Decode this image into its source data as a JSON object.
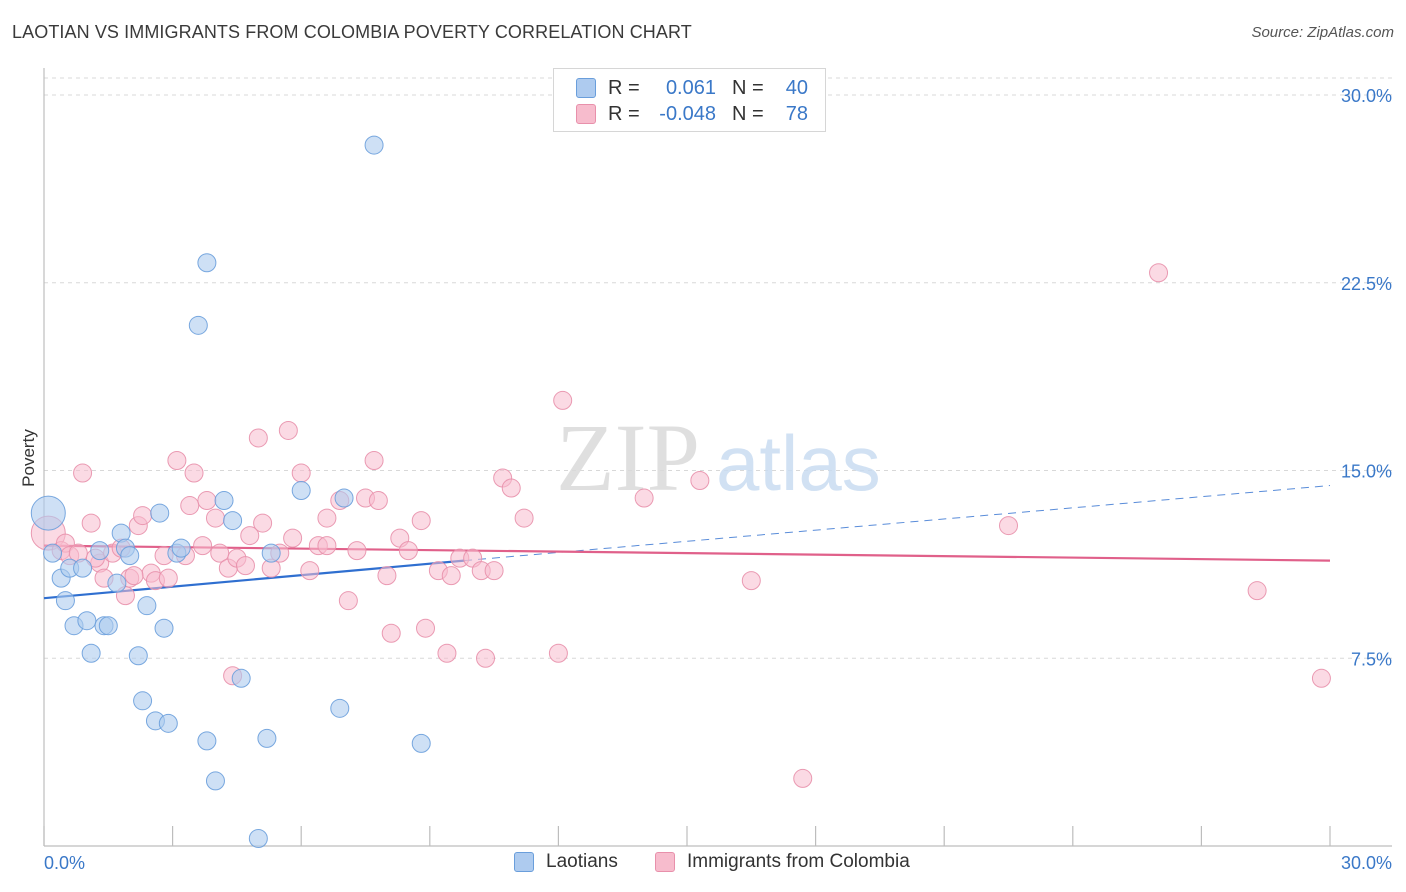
{
  "title": "LAOTIAN VS IMMIGRANTS FROM COLOMBIA POVERTY CORRELATION CHART",
  "source": "Source: ZipAtlas.com",
  "watermark": {
    "zip": "ZIP",
    "atlas": "atlas"
  },
  "legend": {
    "rows": [
      {
        "r_label": "R =",
        "r_value": "0.061",
        "n_label": "N =",
        "n_value": "40"
      },
      {
        "r_label": "R =",
        "r_value": "-0.048",
        "n_label": "N =",
        "n_value": "78"
      }
    ]
  },
  "bottom_legend": [
    "Laotians",
    "Immigrants from Colombia"
  ],
  "colors": {
    "blue_fill": "#aecbef",
    "blue_stroke": "#6a9edb",
    "blue_line": "#2f6fd0",
    "pink_fill": "#f7bccd",
    "pink_stroke": "#e890ab",
    "pink_line": "#e0608a",
    "tick_text": "#3a78c8",
    "grid": "#d8d8d8"
  },
  "chart_data": {
    "type": "scatter",
    "title": "LAOTIAN VS IMMIGRANTS FROM COLOMBIA POVERTY CORRELATION CHART",
    "xlabel": "",
    "ylabel": "Poverty",
    "xlim": [
      0,
      30
    ],
    "ylim": [
      0,
      30.6
    ],
    "x_tick_labels": [
      "0.0%",
      "30.0%"
    ],
    "y_ticks": [
      7.5,
      15.0,
      22.5,
      30.0
    ],
    "y_tick_labels": [
      "7.5%",
      "15.0%",
      "22.5%",
      "30.0%"
    ],
    "grid": "horizontal dashed",
    "legend_position": "top-center",
    "series": [
      {
        "name": "Laotians",
        "color": "#6a9edb",
        "r": 0.061,
        "n": 40,
        "trend": {
          "x": [
            0,
            9.8
          ],
          "y": [
            9.9,
            11.4
          ],
          "dashed_extension_to": [
            30,
            14.4
          ]
        },
        "points": [
          [
            0.1,
            13.3
          ],
          [
            0.2,
            11.7
          ],
          [
            0.4,
            10.7
          ],
          [
            0.5,
            9.8
          ],
          [
            0.6,
            11.1
          ],
          [
            0.7,
            8.8
          ],
          [
            0.9,
            11.1
          ],
          [
            1.0,
            9.0
          ],
          [
            1.1,
            7.7
          ],
          [
            1.3,
            11.8
          ],
          [
            1.4,
            8.8
          ],
          [
            1.5,
            8.8
          ],
          [
            1.7,
            10.5
          ],
          [
            1.8,
            12.5
          ],
          [
            1.9,
            11.9
          ],
          [
            2.0,
            11.6
          ],
          [
            2.2,
            7.6
          ],
          [
            2.3,
            5.8
          ],
          [
            2.4,
            9.6
          ],
          [
            2.6,
            5.0
          ],
          [
            2.7,
            13.3
          ],
          [
            2.8,
            8.7
          ],
          [
            2.9,
            4.9
          ],
          [
            3.1,
            11.7
          ],
          [
            3.2,
            11.9
          ],
          [
            3.6,
            20.8
          ],
          [
            3.8,
            23.3
          ],
          [
            3.8,
            4.2
          ],
          [
            4.0,
            2.6
          ],
          [
            4.2,
            13.8
          ],
          [
            4.4,
            13.0
          ],
          [
            4.6,
            6.7
          ],
          [
            5.0,
            0.3
          ],
          [
            5.2,
            4.3
          ],
          [
            5.3,
            11.7
          ],
          [
            6.0,
            14.2
          ],
          [
            6.9,
            5.5
          ],
          [
            7.0,
            13.9
          ],
          [
            7.7,
            28.0
          ],
          [
            8.8,
            4.1
          ]
        ]
      },
      {
        "name": "Immigrants from Colombia",
        "color": "#e890ab",
        "r": -0.048,
        "n": 78,
        "trend": {
          "x": [
            0,
            30
          ],
          "y": [
            12.0,
            11.4
          ]
        },
        "points": [
          [
            0.1,
            12.5
          ],
          [
            0.4,
            11.8
          ],
          [
            0.5,
            12.1
          ],
          [
            0.6,
            11.6
          ],
          [
            0.9,
            14.9
          ],
          [
            1.1,
            12.9
          ],
          [
            1.3,
            11.3
          ],
          [
            1.4,
            10.7
          ],
          [
            1.6,
            11.7
          ],
          [
            1.8,
            11.9
          ],
          [
            1.9,
            10.0
          ],
          [
            2.0,
            10.7
          ],
          [
            2.2,
            12.8
          ],
          [
            2.3,
            13.2
          ],
          [
            2.5,
            10.9
          ],
          [
            2.6,
            10.6
          ],
          [
            2.8,
            11.6
          ],
          [
            2.9,
            10.7
          ],
          [
            3.1,
            15.4
          ],
          [
            3.4,
            13.6
          ],
          [
            3.5,
            14.9
          ],
          [
            3.7,
            12.0
          ],
          [
            3.8,
            13.8
          ],
          [
            4.0,
            13.1
          ],
          [
            4.1,
            11.7
          ],
          [
            4.3,
            11.1
          ],
          [
            4.4,
            6.8
          ],
          [
            4.5,
            11.5
          ],
          [
            4.7,
            11.2
          ],
          [
            4.8,
            12.4
          ],
          [
            5.0,
            16.3
          ],
          [
            5.1,
            12.9
          ],
          [
            5.3,
            11.1
          ],
          [
            5.5,
            11.7
          ],
          [
            5.7,
            16.6
          ],
          [
            5.8,
            12.3
          ],
          [
            6.0,
            14.9
          ],
          [
            6.2,
            11.0
          ],
          [
            6.4,
            12.0
          ],
          [
            6.6,
            13.1
          ],
          [
            6.9,
            13.8
          ],
          [
            7.1,
            9.8
          ],
          [
            7.3,
            11.8
          ],
          [
            7.5,
            13.9
          ],
          [
            7.7,
            15.4
          ],
          [
            7.8,
            13.8
          ],
          [
            8.0,
            10.8
          ],
          [
            8.1,
            8.5
          ],
          [
            8.3,
            12.3
          ],
          [
            8.5,
            11.8
          ],
          [
            8.8,
            13.0
          ],
          [
            8.9,
            8.7
          ],
          [
            9.2,
            11.0
          ],
          [
            9.4,
            7.7
          ],
          [
            9.5,
            10.8
          ],
          [
            9.7,
            11.5
          ],
          [
            10.0,
            11.5
          ],
          [
            10.2,
            11.0
          ],
          [
            10.3,
            7.5
          ],
          [
            10.5,
            11.0
          ],
          [
            10.7,
            14.7
          ],
          [
            10.9,
            14.3
          ],
          [
            11.2,
            13.1
          ],
          [
            12.0,
            7.7
          ],
          [
            12.1,
            17.8
          ],
          [
            14.0,
            13.9
          ],
          [
            15.3,
            14.6
          ],
          [
            16.5,
            10.6
          ],
          [
            17.7,
            2.7
          ],
          [
            22.5,
            12.8
          ],
          [
            26.0,
            22.9
          ],
          [
            28.3,
            10.2
          ],
          [
            29.8,
            6.7
          ],
          [
            3.3,
            11.6
          ],
          [
            6.6,
            12.0
          ],
          [
            1.2,
            11.5
          ],
          [
            2.1,
            10.8
          ],
          [
            0.8,
            11.7
          ]
        ]
      }
    ]
  }
}
